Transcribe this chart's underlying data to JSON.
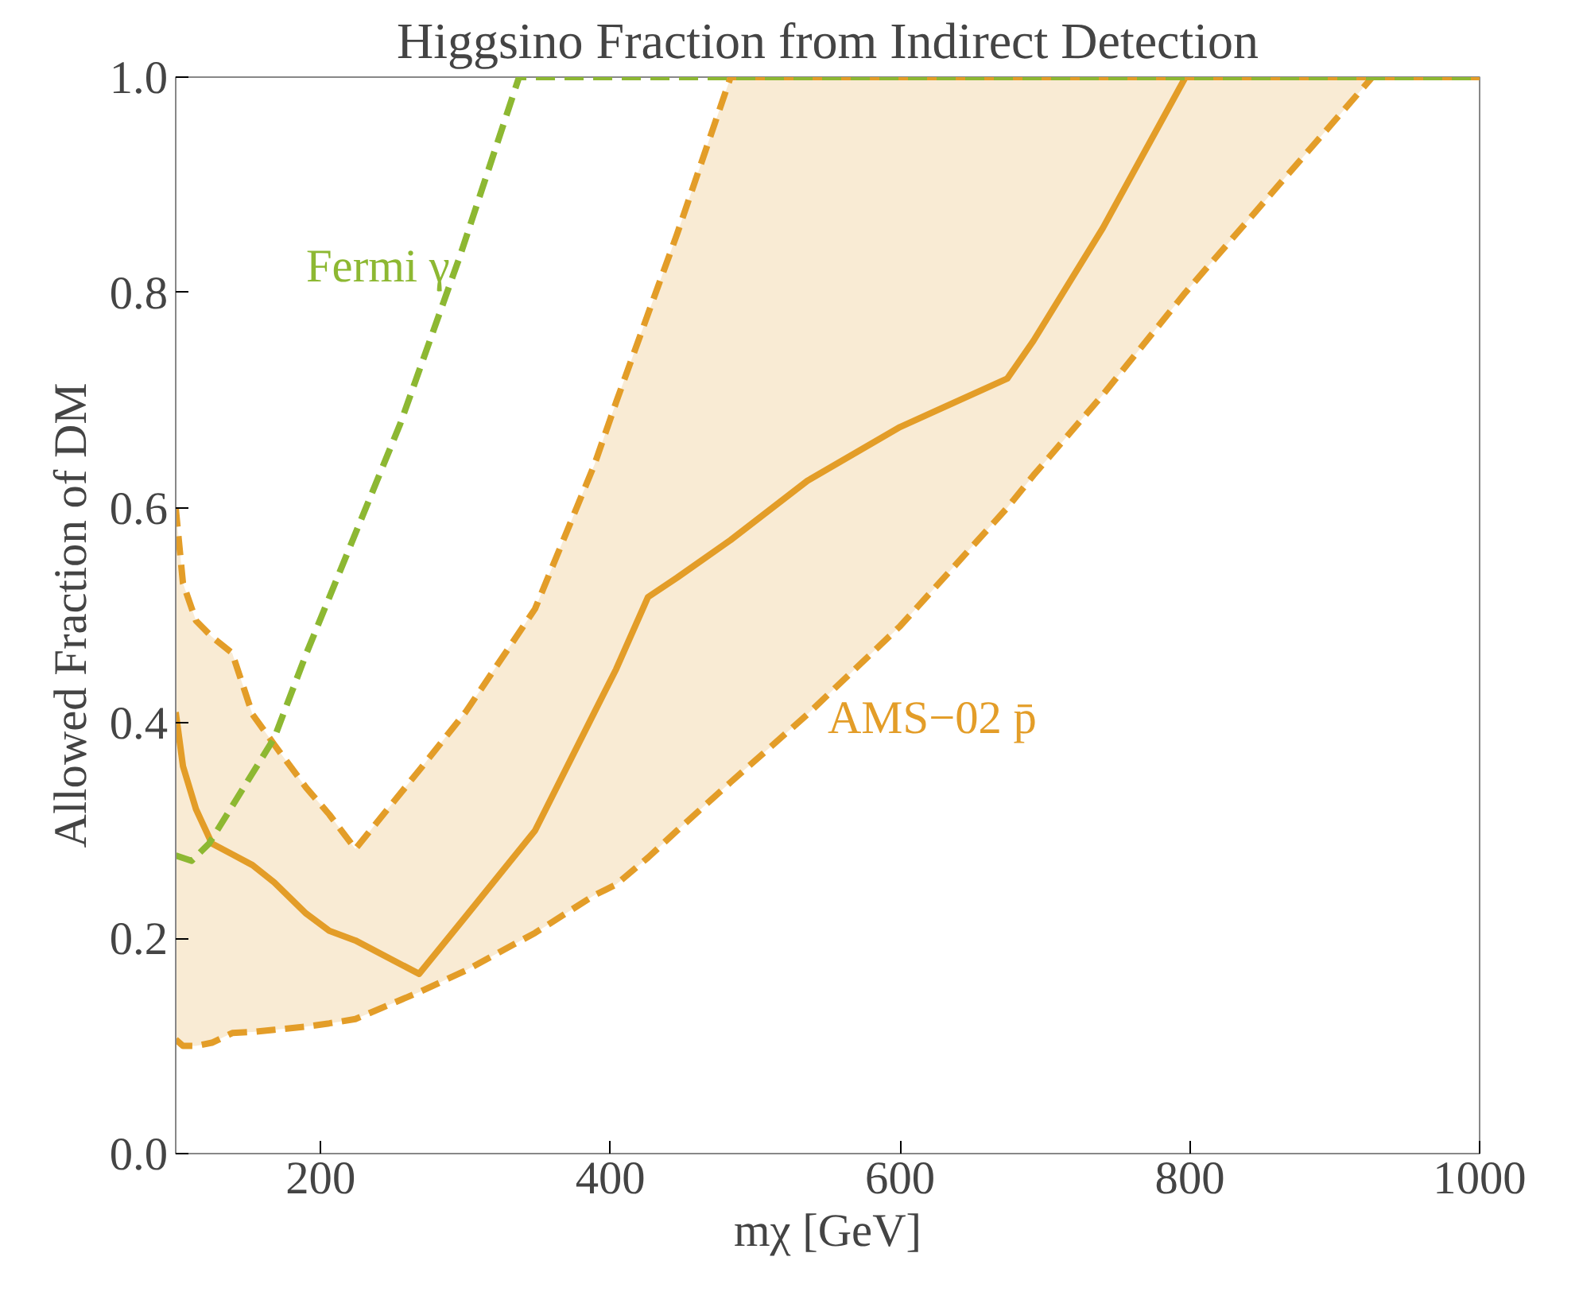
{
  "chart_data": {
    "type": "line",
    "title": "Higgsino Fraction from Indirect Detection",
    "xlabel": "mχ [GeV]",
    "ylabel": "Allowed Fraction of DM",
    "x": [
      100,
      105,
      114,
      125,
      139,
      153,
      168,
      190,
      206,
      224,
      268,
      300,
      348,
      389,
      404,
      426,
      446,
      483,
      536,
      600,
      674,
      692,
      740,
      797,
      926,
      1000
    ],
    "series": [
      {
        "name": "AMS−02 p̄",
        "color": "#e39d28",
        "line_style": "solid",
        "values": [
          0.41,
          0.36,
          0.32,
          0.288,
          0.278,
          0.268,
          0.252,
          0.223,
          0.207,
          0.198,
          0.167,
          0.22,
          0.3,
          0.41,
          0.45,
          0.517,
          0.535,
          0.57,
          0.625,
          0.675,
          0.72,
          0.755,
          0.86,
          1.0,
          1.0,
          1.0
        ],
        "upper": [
          0.6,
          0.53,
          0.495,
          0.48,
          0.465,
          0.408,
          0.38,
          0.34,
          0.315,
          0.283,
          0.356,
          0.41,
          0.506,
          0.64,
          0.698,
          0.78,
          0.854,
          1.0,
          1.0,
          1.0,
          1.0,
          1.0,
          1.0,
          1.0,
          1.0,
          1.0
        ],
        "lower": [
          0.106,
          0.1,
          0.1,
          0.103,
          0.112,
          0.113,
          0.115,
          0.118,
          0.121,
          0.125,
          0.15,
          0.17,
          0.205,
          0.24,
          0.25,
          0.275,
          0.3,
          0.345,
          0.408,
          0.49,
          0.6,
          0.63,
          0.705,
          0.8,
          1.0,
          1.0
        ]
      },
      {
        "color": "#e39d28",
        "line_style": "dashed",
        "values": [
          0.6,
          0.53,
          0.495,
          0.48,
          0.465,
          0.408,
          0.38,
          0.34,
          0.315,
          0.283,
          0.356,
          0.41,
          0.506,
          0.64,
          0.698,
          0.78,
          0.854,
          1.0,
          1.0,
          1.0,
          1.0,
          1.0,
          1.0,
          1.0,
          1.0,
          1.0
        ]
      },
      {
        "color": "#e39d28",
        "line_style": "dashed",
        "values": [
          0.106,
          0.1,
          0.1,
          0.103,
          0.112,
          0.113,
          0.115,
          0.118,
          0.121,
          0.125,
          0.15,
          0.17,
          0.205,
          0.24,
          0.25,
          0.275,
          0.3,
          0.345,
          0.408,
          0.49,
          0.6,
          0.63,
          0.705,
          0.8,
          1.0,
          1.0
        ]
      },
      {
        "name": "Fermi γ",
        "color": "#8db832",
        "line_style": "dashed",
        "x": [
          100,
          111,
          123,
          168,
          190,
          255,
          296,
          337,
          1000
        ],
        "values": [
          0.277,
          0.272,
          0.288,
          0.386,
          0.464,
          0.678,
          0.833,
          1.0,
          1.0
        ]
      }
    ],
    "xlim": [
      100,
      1000
    ],
    "xticks": [
      200,
      400,
      600,
      800,
      1000
    ],
    "ylim": [
      0,
      1
    ],
    "yticks": [
      {
        "value": 0,
        "label": "0.0"
      },
      {
        "value": 0.2,
        "label": "0.2"
      },
      {
        "value": 0.4,
        "label": "0.4"
      },
      {
        "value": 0.6,
        "label": "0.6"
      },
      {
        "value": 0.8,
        "label": "0.8"
      },
      {
        "value": 1,
        "label": "1.0"
      }
    ]
  }
}
